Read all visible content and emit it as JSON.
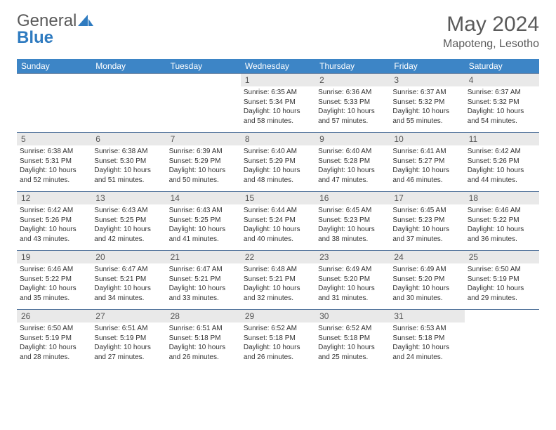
{
  "logo": {
    "general": "General",
    "blue": "Blue"
  },
  "title": "May 2024",
  "location": "Mapoteng, Lesotho",
  "styling": {
    "header_bg": "#3d85c6",
    "header_fg": "#ffffff",
    "daynum_bg": "#e9e9e9",
    "daynum_fg": "#555555",
    "row_border": "#5a7aa0",
    "body_text": "#333333",
    "page_bg": "#ffffff",
    "title_color": "#5a5a5a",
    "logo_gray": "#5a5a5a",
    "logo_blue": "#2f7bc0",
    "title_fontsize": 30,
    "location_fontsize": 16,
    "header_fontsize": 12,
    "daynum_fontsize": 12,
    "body_fontsize": 10
  },
  "weekdays": [
    "Sunday",
    "Monday",
    "Tuesday",
    "Wednesday",
    "Thursday",
    "Friday",
    "Saturday"
  ],
  "weeks": [
    [
      null,
      null,
      null,
      {
        "n": "1",
        "sr": "6:35 AM",
        "ss": "5:34 PM",
        "d": "10 hours and 58 minutes."
      },
      {
        "n": "2",
        "sr": "6:36 AM",
        "ss": "5:33 PM",
        "d": "10 hours and 57 minutes."
      },
      {
        "n": "3",
        "sr": "6:37 AM",
        "ss": "5:32 PM",
        "d": "10 hours and 55 minutes."
      },
      {
        "n": "4",
        "sr": "6:37 AM",
        "ss": "5:32 PM",
        "d": "10 hours and 54 minutes."
      }
    ],
    [
      {
        "n": "5",
        "sr": "6:38 AM",
        "ss": "5:31 PM",
        "d": "10 hours and 52 minutes."
      },
      {
        "n": "6",
        "sr": "6:38 AM",
        "ss": "5:30 PM",
        "d": "10 hours and 51 minutes."
      },
      {
        "n": "7",
        "sr": "6:39 AM",
        "ss": "5:29 PM",
        "d": "10 hours and 50 minutes."
      },
      {
        "n": "8",
        "sr": "6:40 AM",
        "ss": "5:29 PM",
        "d": "10 hours and 48 minutes."
      },
      {
        "n": "9",
        "sr": "6:40 AM",
        "ss": "5:28 PM",
        "d": "10 hours and 47 minutes."
      },
      {
        "n": "10",
        "sr": "6:41 AM",
        "ss": "5:27 PM",
        "d": "10 hours and 46 minutes."
      },
      {
        "n": "11",
        "sr": "6:42 AM",
        "ss": "5:26 PM",
        "d": "10 hours and 44 minutes."
      }
    ],
    [
      {
        "n": "12",
        "sr": "6:42 AM",
        "ss": "5:26 PM",
        "d": "10 hours and 43 minutes."
      },
      {
        "n": "13",
        "sr": "6:43 AM",
        "ss": "5:25 PM",
        "d": "10 hours and 42 minutes."
      },
      {
        "n": "14",
        "sr": "6:43 AM",
        "ss": "5:25 PM",
        "d": "10 hours and 41 minutes."
      },
      {
        "n": "15",
        "sr": "6:44 AM",
        "ss": "5:24 PM",
        "d": "10 hours and 40 minutes."
      },
      {
        "n": "16",
        "sr": "6:45 AM",
        "ss": "5:23 PM",
        "d": "10 hours and 38 minutes."
      },
      {
        "n": "17",
        "sr": "6:45 AM",
        "ss": "5:23 PM",
        "d": "10 hours and 37 minutes."
      },
      {
        "n": "18",
        "sr": "6:46 AM",
        "ss": "5:22 PM",
        "d": "10 hours and 36 minutes."
      }
    ],
    [
      {
        "n": "19",
        "sr": "6:46 AM",
        "ss": "5:22 PM",
        "d": "10 hours and 35 minutes."
      },
      {
        "n": "20",
        "sr": "6:47 AM",
        "ss": "5:21 PM",
        "d": "10 hours and 34 minutes."
      },
      {
        "n": "21",
        "sr": "6:47 AM",
        "ss": "5:21 PM",
        "d": "10 hours and 33 minutes."
      },
      {
        "n": "22",
        "sr": "6:48 AM",
        "ss": "5:21 PM",
        "d": "10 hours and 32 minutes."
      },
      {
        "n": "23",
        "sr": "6:49 AM",
        "ss": "5:20 PM",
        "d": "10 hours and 31 minutes."
      },
      {
        "n": "24",
        "sr": "6:49 AM",
        "ss": "5:20 PM",
        "d": "10 hours and 30 minutes."
      },
      {
        "n": "25",
        "sr": "6:50 AM",
        "ss": "5:19 PM",
        "d": "10 hours and 29 minutes."
      }
    ],
    [
      {
        "n": "26",
        "sr": "6:50 AM",
        "ss": "5:19 PM",
        "d": "10 hours and 28 minutes."
      },
      {
        "n": "27",
        "sr": "6:51 AM",
        "ss": "5:19 PM",
        "d": "10 hours and 27 minutes."
      },
      {
        "n": "28",
        "sr": "6:51 AM",
        "ss": "5:18 PM",
        "d": "10 hours and 26 minutes."
      },
      {
        "n": "29",
        "sr": "6:52 AM",
        "ss": "5:18 PM",
        "d": "10 hours and 26 minutes."
      },
      {
        "n": "30",
        "sr": "6:52 AM",
        "ss": "5:18 PM",
        "d": "10 hours and 25 minutes."
      },
      {
        "n": "31",
        "sr": "6:53 AM",
        "ss": "5:18 PM",
        "d": "10 hours and 24 minutes."
      },
      null
    ]
  ],
  "labels": {
    "sunrise": "Sunrise:",
    "sunset": "Sunset:",
    "daylight": "Daylight:"
  }
}
